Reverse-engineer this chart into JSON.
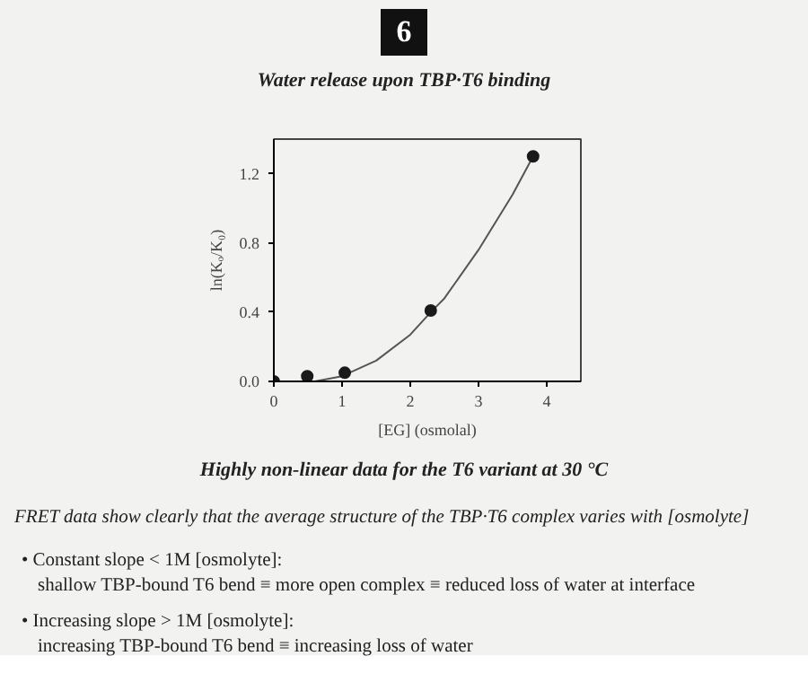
{
  "chart_data": {
    "type": "scatter",
    "title": "Water release upon TBP·T6 binding",
    "xlabel": "[EG] (osmolal)",
    "ylabel": "ln(Kₒ/K₀)",
    "xlim": [
      0,
      4.5
    ],
    "ylim": [
      0,
      1.4
    ],
    "xticks": [
      0,
      1,
      2,
      3,
      4
    ],
    "yticks": [
      {
        "value": 0,
        "label": "0.0"
      },
      {
        "value": 0.4,
        "label": "0.4"
      },
      {
        "value": 0.8,
        "label": "0.8"
      },
      {
        "value": 1.2,
        "label": "1.2"
      }
    ],
    "grid": false,
    "series": [
      {
        "type": "line",
        "color": "#555555",
        "x": [
          0,
          0.6,
          1,
          1.5,
          2,
          2.3,
          2.5,
          3,
          3.5,
          3.8
        ],
        "values": [
          0,
          0,
          0.03,
          0.12,
          0.27,
          0.4,
          0.48,
          0.76,
          1.08,
          1.3
        ]
      },
      {
        "color": "#1a1a1a",
        "marker": "circle",
        "x": [
          0,
          0.49,
          1.04,
          2.3,
          3.8
        ],
        "values": [
          0,
          0.03,
          0.05,
          0.41,
          1.3
        ]
      }
    ],
    "annotations": [
      "6",
      "Highly non-linear data for the T6 variant at 30 °C",
      "FRET data show clearly that the average structure of the TBP·T6 complex varies with [osmolyte]",
      "• Constant slope < 1M [osmolyte]:",
      "shallow TBP-bound T6 bend ≡ more open complex ≡ reduced loss of water at interface",
      "• Increasing slope > 1M [osmolyte]:",
      "increasing TBP-bound T6 bend ≡ increasing loss of water"
    ]
  }
}
